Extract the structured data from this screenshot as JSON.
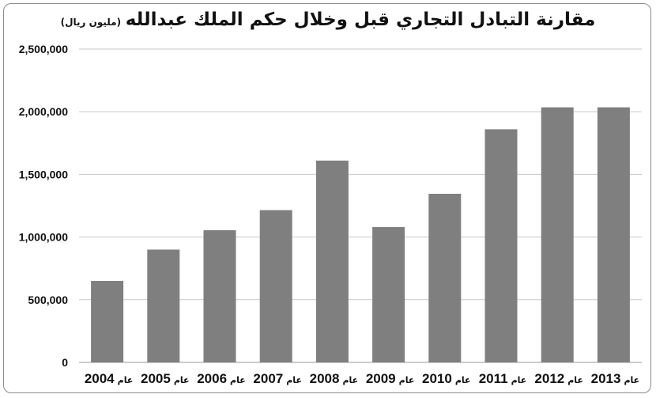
{
  "chart_data": {
    "type": "bar",
    "title": "مقارنة التبادل التجاري قبل وخلال حكم الملك عبدالله",
    "subtitle": "(مليون ريال)",
    "category_prefix": "عام",
    "categories": [
      "2004",
      "2005",
      "2006",
      "2007",
      "2008",
      "2009",
      "2010",
      "2011",
      "2012",
      "2013"
    ],
    "values": [
      650000,
      900000,
      1055000,
      1215000,
      1610000,
      1080000,
      1345000,
      1860000,
      2035000,
      2035000
    ],
    "yticks": [
      "0",
      "500,000",
      "1,000,000",
      "1,500,000",
      "2,000,000",
      "2,500,000"
    ],
    "ylim": [
      0,
      2500000
    ],
    "grid": true,
    "legend": "none",
    "bar_color": "#7f7f7f",
    "grid_color": "#c8c8c8"
  }
}
